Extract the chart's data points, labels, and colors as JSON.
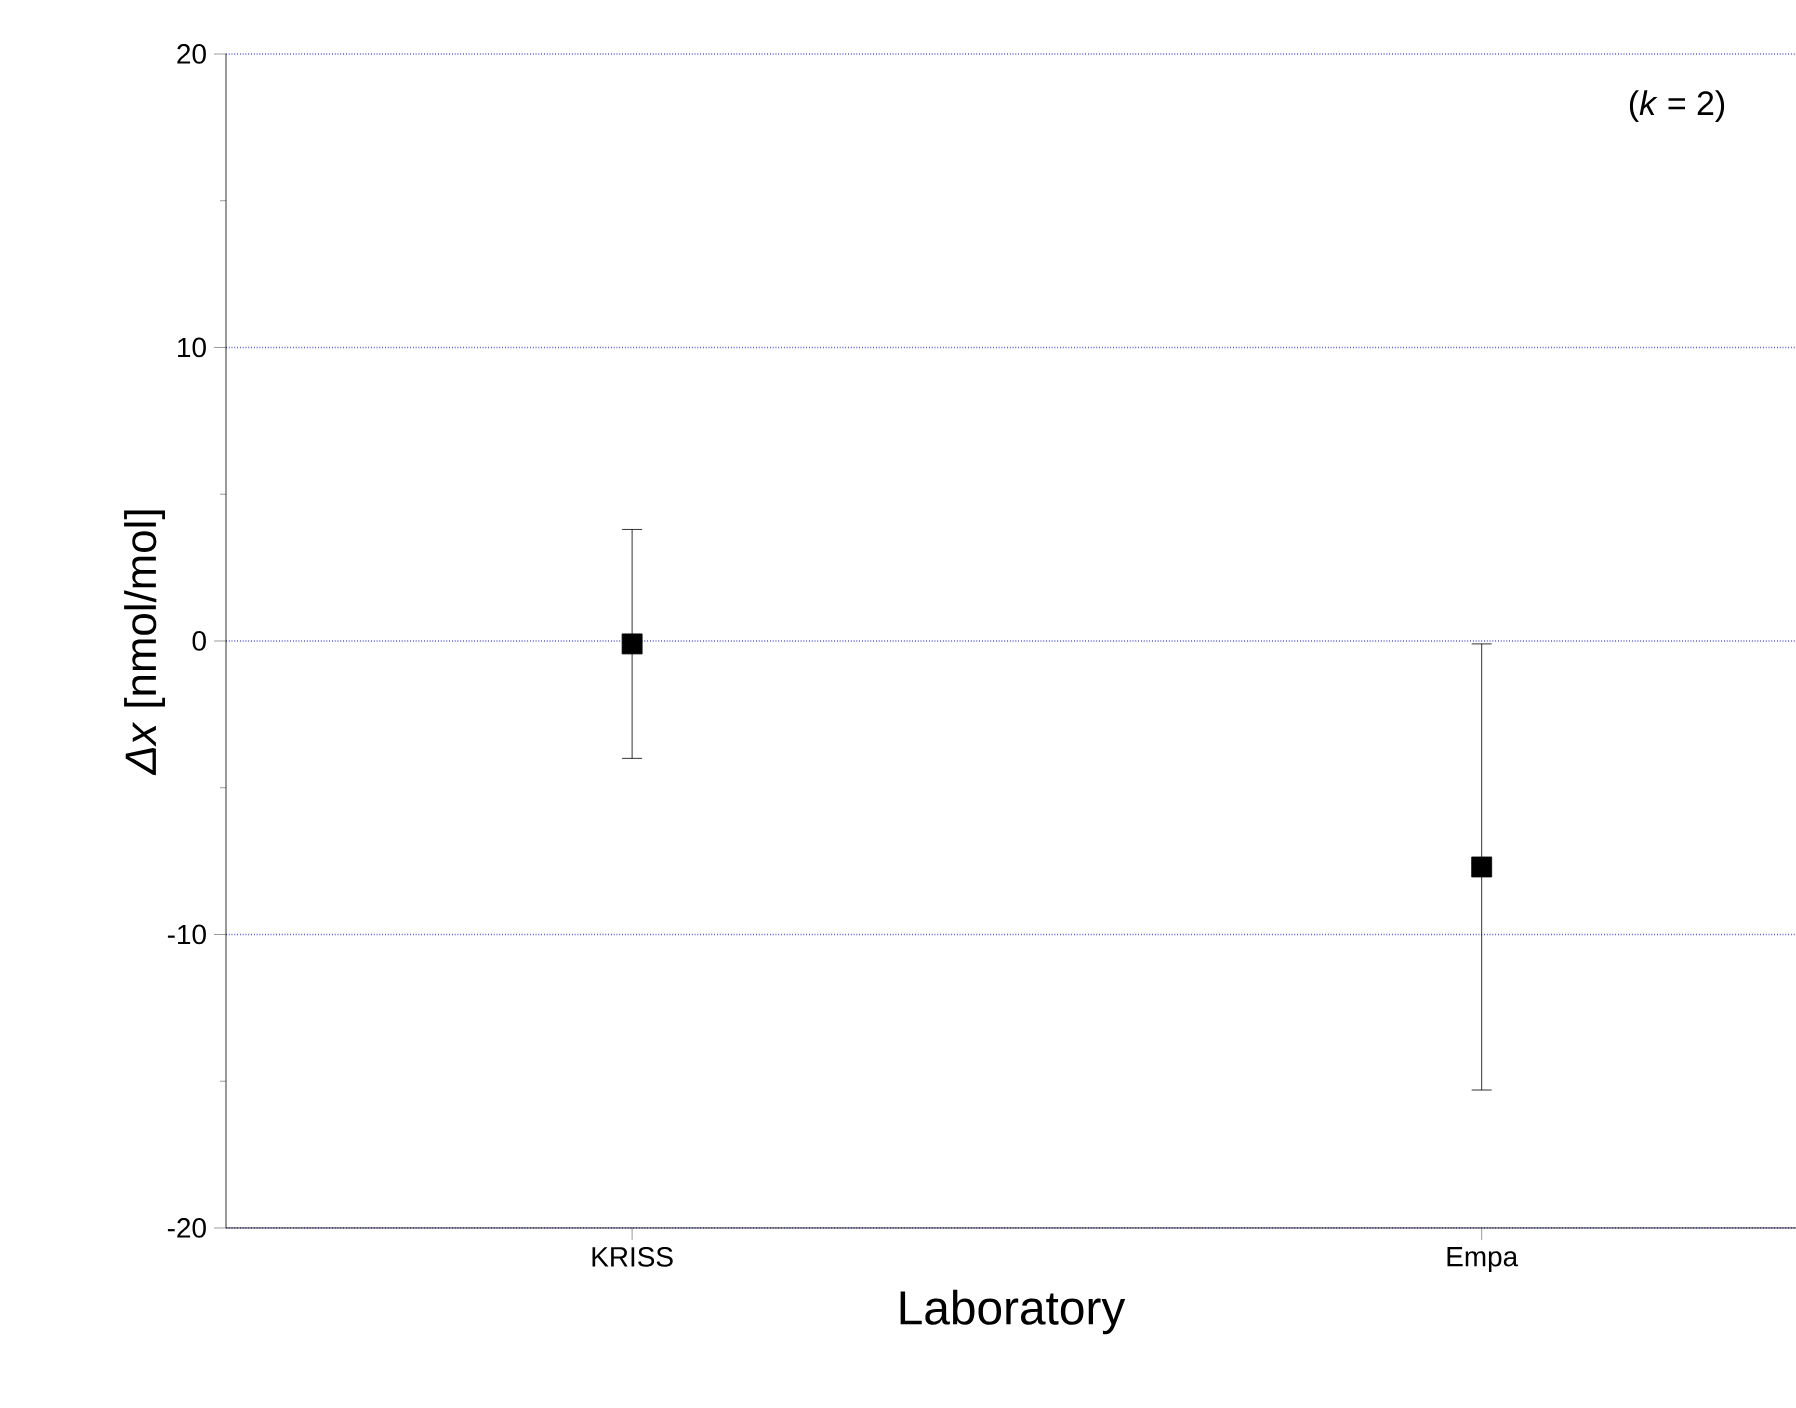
{
  "chart_data": {
    "type": "scatter",
    "xlabel": "Laboratory",
    "ylabel": "*Δx* [nmol/mol]",
    "categories": [
      "KRISS",
      "Empa"
    ],
    "values": [
      -0.1,
      -7.7
    ],
    "errors": [
      3.9,
      7.6
    ],
    "color": "#000000",
    "marker": "square",
    "ylim": [
      -20,
      20
    ],
    "yticks": [
      -20,
      -10,
      0,
      10,
      20
    ],
    "grid": "y",
    "annotations": [
      "(*k* = 2)"
    ]
  }
}
